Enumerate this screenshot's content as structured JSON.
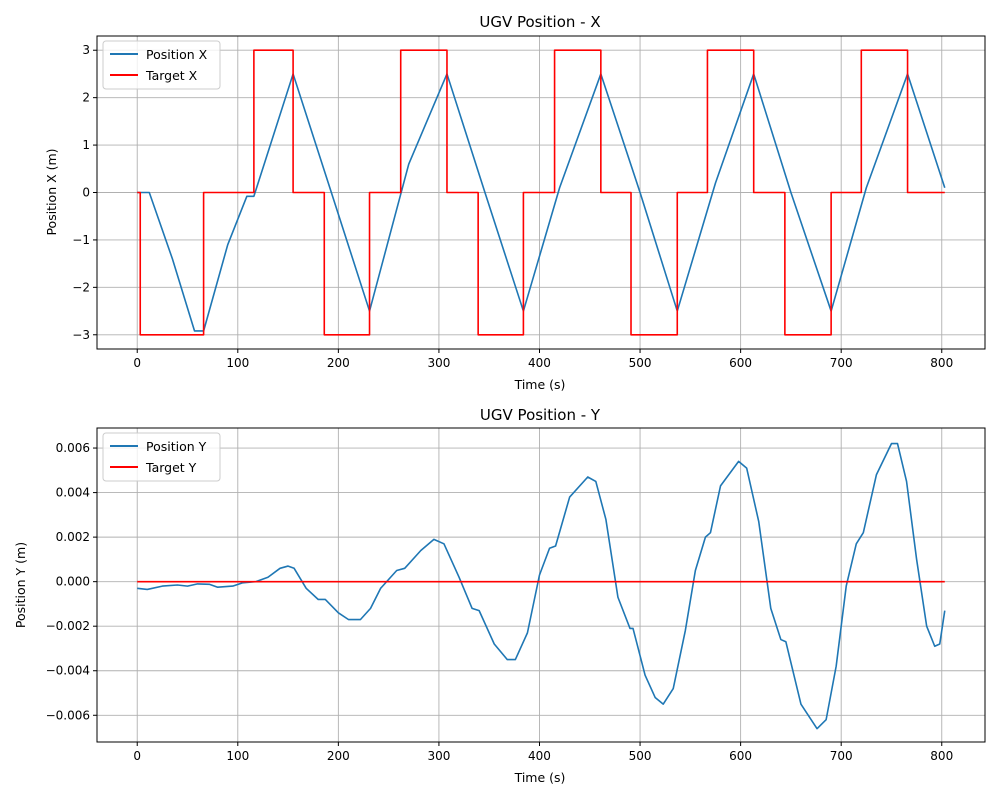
{
  "chart_data": [
    {
      "type": "line",
      "title": "UGV Position - X",
      "xlabel": "Time (s)",
      "ylabel": "Position X (m)",
      "xlim": [
        -40,
        843
      ],
      "ylim": [
        -3.3,
        3.3
      ],
      "xticks": [
        0,
        100,
        200,
        300,
        400,
        500,
        600,
        700,
        800
      ],
      "yticks": [
        -3,
        -2,
        -1,
        0,
        1,
        2,
        3
      ],
      "ytick_labels": [
        "−3",
        "−2",
        "−1",
        "0",
        "1",
        "2",
        "3"
      ],
      "legend_position": "upper-left",
      "series": [
        {
          "name": "Position X",
          "color": "#1f77b4",
          "points": [
            [
              0,
              0
            ],
            [
              12,
              0
            ],
            [
              35,
              -1.4
            ],
            [
              57,
              -2.92
            ],
            [
              66,
              -2.92
            ],
            [
              90,
              -1.1
            ],
            [
              109,
              -0.08
            ],
            [
              116,
              -0.08
            ],
            [
              155,
              2.5
            ],
            [
              190,
              0.2
            ],
            [
              231,
              -2.5
            ],
            [
              270,
              0.6
            ],
            [
              308,
              2.5
            ],
            [
              345,
              0.05
            ],
            [
              384,
              -2.5
            ],
            [
              420,
              0.1
            ],
            [
              461,
              2.5
            ],
            [
              500,
              0.0
            ],
            [
              537,
              -2.5
            ],
            [
              575,
              0.2
            ],
            [
              613,
              2.5
            ],
            [
              650,
              0.0
            ],
            [
              690,
              -2.5
            ],
            [
              725,
              0.1
            ],
            [
              766,
              2.5
            ],
            [
              803,
              0.1
            ]
          ]
        },
        {
          "name": "Target X",
          "color": "#ff0000",
          "points": [
            [
              0,
              0
            ],
            [
              3,
              0
            ],
            [
              3,
              -3
            ],
            [
              66,
              -3
            ],
            [
              66,
              0
            ],
            [
              116,
              0
            ],
            [
              116,
              3
            ],
            [
              155,
              3
            ],
            [
              155,
              0
            ],
            [
              186,
              0
            ],
            [
              186,
              -3
            ],
            [
              231,
              -3
            ],
            [
              231,
              0
            ],
            [
              262,
              0
            ],
            [
              262,
              3
            ],
            [
              308,
              3
            ],
            [
              308,
              0
            ],
            [
              339,
              0
            ],
            [
              339,
              -3
            ],
            [
              384,
              -3
            ],
            [
              384,
              0
            ],
            [
              415,
              0
            ],
            [
              415,
              3
            ],
            [
              461,
              3
            ],
            [
              461,
              0
            ],
            [
              491,
              0
            ],
            [
              491,
              -3
            ],
            [
              537,
              -3
            ],
            [
              537,
              0
            ],
            [
              567,
              0
            ],
            [
              567,
              3
            ],
            [
              613,
              3
            ],
            [
              613,
              0
            ],
            [
              644,
              0
            ],
            [
              644,
              -3
            ],
            [
              690,
              -3
            ],
            [
              690,
              0
            ],
            [
              720,
              0
            ],
            [
              720,
              3
            ],
            [
              766,
              3
            ],
            [
              766,
              0
            ],
            [
              803,
              0
            ]
          ]
        }
      ]
    },
    {
      "type": "line",
      "title": "UGV Position - Y",
      "xlabel": "Time (s)",
      "ylabel": "Position Y (m)",
      "xlim": [
        -40,
        843
      ],
      "ylim": [
        -0.0072,
        0.0069
      ],
      "xticks": [
        0,
        100,
        200,
        300,
        400,
        500,
        600,
        700,
        800
      ],
      "yticks": [
        -0.006,
        -0.004,
        -0.002,
        0.0,
        0.002,
        0.004,
        0.006
      ],
      "ytick_labels": [
        "−0.006",
        "−0.004",
        "−0.002",
        "0.000",
        "0.002",
        "0.004",
        "0.006"
      ],
      "legend_position": "upper-left",
      "series": [
        {
          "name": "Position Y",
          "color": "#1f77b4",
          "points": [
            [
              0,
              -0.0003
            ],
            [
              10,
              -0.00035
            ],
            [
              25,
              -0.0002
            ],
            [
              40,
              -0.00015
            ],
            [
              50,
              -0.0002
            ],
            [
              60,
              -0.0001
            ],
            [
              72,
              -0.00012
            ],
            [
              80,
              -0.00025
            ],
            [
              95,
              -0.0002
            ],
            [
              105,
              -5e-05
            ],
            [
              118,
              0.0
            ],
            [
              130,
              0.0002
            ],
            [
              142,
              0.0006
            ],
            [
              150,
              0.0007
            ],
            [
              156,
              0.0006
            ],
            [
              168,
              -0.0003
            ],
            [
              180,
              -0.0008
            ],
            [
              187,
              -0.0008
            ],
            [
              200,
              -0.0014
            ],
            [
              210,
              -0.0017
            ],
            [
              222,
              -0.0017
            ],
            [
              232,
              -0.0012
            ],
            [
              242,
              -0.0003
            ],
            [
              258,
              0.0005
            ],
            [
              266,
              0.0006
            ],
            [
              282,
              0.0014
            ],
            [
              295,
              0.0019
            ],
            [
              305,
              0.0017
            ],
            [
              320,
              0.0002
            ],
            [
              333,
              -0.0012
            ],
            [
              340,
              -0.0013
            ],
            [
              355,
              -0.0028
            ],
            [
              368,
              -0.0035
            ],
            [
              376,
              -0.0035
            ],
            [
              388,
              -0.0023
            ],
            [
              400,
              0.0003
            ],
            [
              410,
              0.0015
            ],
            [
              416,
              0.0016
            ],
            [
              430,
              0.0038
            ],
            [
              448,
              0.0047
            ],
            [
              456,
              0.0045
            ],
            [
              466,
              0.0028
            ],
            [
              478,
              -0.0007
            ],
            [
              490,
              -0.0021
            ],
            [
              493,
              -0.0021
            ],
            [
              505,
              -0.0042
            ],
            [
              515,
              -0.0052
            ],
            [
              523,
              -0.0055
            ],
            [
              533,
              -0.0048
            ],
            [
              545,
              -0.0022
            ],
            [
              555,
              0.0005
            ],
            [
              565,
              0.002
            ],
            [
              570,
              0.0022
            ],
            [
              580,
              0.0043
            ],
            [
              598,
              0.0054
            ],
            [
              606,
              0.0051
            ],
            [
              618,
              0.0027
            ],
            [
              630,
              -0.0012
            ],
            [
              640,
              -0.0026
            ],
            [
              645,
              -0.0027
            ],
            [
              660,
              -0.0055
            ],
            [
              676,
              -0.0066
            ],
            [
              685,
              -0.0062
            ],
            [
              695,
              -0.0038
            ],
            [
              705,
              -0.0002
            ],
            [
              715,
              0.0017
            ],
            [
              722,
              0.0022
            ],
            [
              735,
              0.0048
            ],
            [
              750,
              0.0062
            ],
            [
              756,
              0.0062
            ],
            [
              765,
              0.0045
            ],
            [
              775,
              0.001
            ],
            [
              785,
              -0.002
            ],
            [
              793,
              -0.0029
            ],
            [
              798,
              -0.0028
            ],
            [
              803,
              -0.0013
            ]
          ]
        },
        {
          "name": "Target Y",
          "color": "#ff0000",
          "points": [
            [
              0,
              0
            ],
            [
              803,
              0
            ]
          ]
        }
      ]
    }
  ]
}
